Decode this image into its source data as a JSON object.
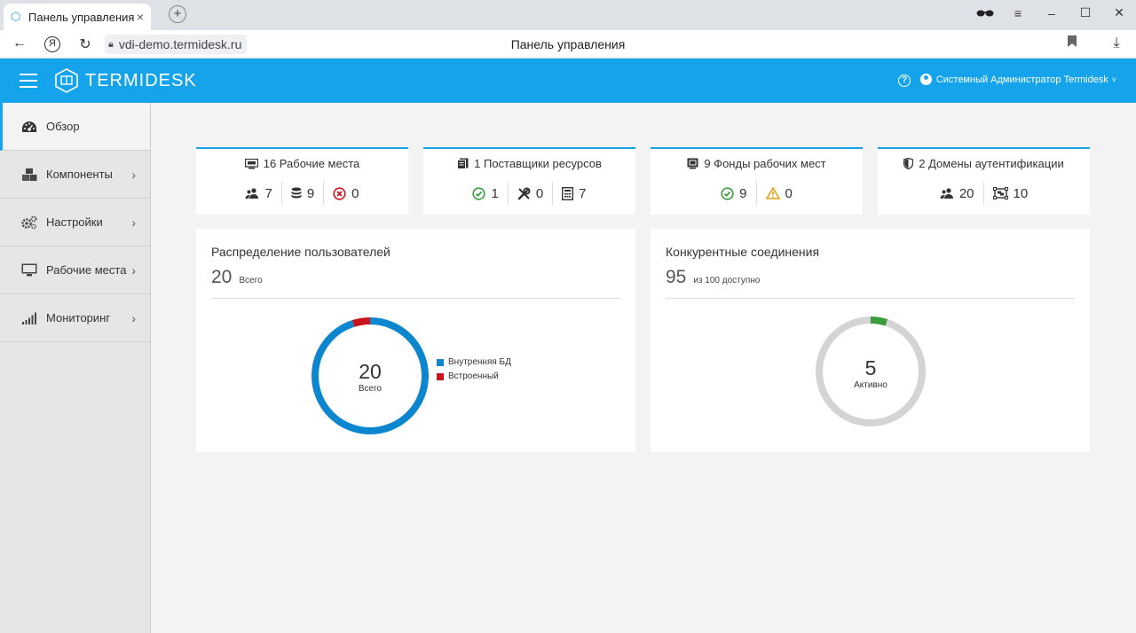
{
  "browser": {
    "tab_title": "Панель управления",
    "tab_close": "×",
    "new_tab": "+",
    "url": "vdi-demo.termidesk.ru",
    "page_title": "Панель управления",
    "yandex": "Я"
  },
  "header": {
    "logo_text": "TERMIDESK",
    "help_symbol": "?",
    "user_name": "Системный Администратор Termidesk",
    "user_caret": "˅"
  },
  "sidebar": {
    "items": [
      {
        "label": "Обзор",
        "icon": "dashboard-icon",
        "active": true
      },
      {
        "label": "Компоненты",
        "icon": "cubes-icon"
      },
      {
        "label": "Настройки",
        "icon": "cogs-icon"
      },
      {
        "label": "Рабочие места",
        "icon": "monitor-icon"
      },
      {
        "label": "Мониторинг",
        "icon": "signal-icon"
      }
    ],
    "chevron": "›"
  },
  "stats": {
    "workstations": {
      "title": "16 Рабочие места",
      "users": "7",
      "db": "9",
      "errors": "0"
    },
    "providers": {
      "title": "1 Поставщики ресурсов",
      "ok": "1",
      "maintenance": "0",
      "items": "7"
    },
    "pools": {
      "title": "9 Фонды рабочих мест",
      "ok": "9",
      "warnings": "0"
    },
    "domains": {
      "title": "2 Домены аутентификации",
      "users": "20",
      "groups": "10"
    }
  },
  "users_chart": {
    "title": "Распределение пользователей",
    "total": "20",
    "total_label": "Всего",
    "center_value": "20",
    "center_label": "Всего",
    "legend": [
      {
        "name": "Внутренняя БД",
        "color": "#0c86cf",
        "value": 19
      },
      {
        "name": "Встроенный",
        "color": "#c8141d",
        "value": 1
      }
    ]
  },
  "connections_chart": {
    "title": "Конкурентные соединения",
    "total": "95",
    "total_label": "из 100 доступно",
    "center_value": "5",
    "center_label": "Активно",
    "active": 5,
    "capacity": 100,
    "active_color": "#3a9b3a",
    "rest_color": "#d4d4d4"
  }
}
